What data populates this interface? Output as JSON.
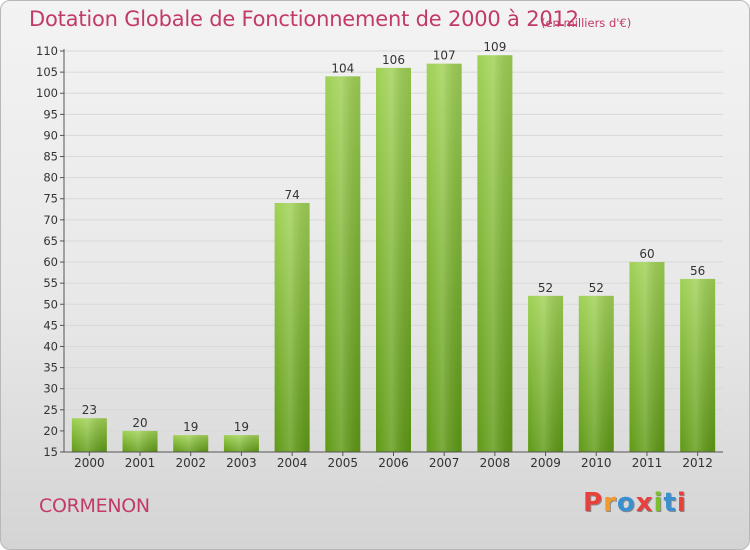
{
  "header": {
    "title": "Dotation Globale de Fonctionnement de 2000 à 2012",
    "subtitle": "(en milliers d'€)"
  },
  "footer": {
    "commune": "CORMENON",
    "logo_text": "Proxiti",
    "logo_colors": [
      "#e8413c",
      "#f29a2e",
      "#3a8fd1",
      "#e8413c",
      "#7bbf2a",
      "#3a8fd1",
      "#e8413c"
    ]
  },
  "colors": {
    "title": "#c23a6a",
    "bar_light": "#9fd154",
    "bar_dark": "#5f9a15",
    "grid": "#d8d8d8",
    "axis_text": "#333333"
  },
  "chart_data": {
    "type": "bar",
    "title": "Dotation Globale de Fonctionnement de 2000 à 2012",
    "subtitle": "(en milliers d'€)",
    "categories": [
      "2000",
      "2001",
      "2002",
      "2003",
      "2004",
      "2005",
      "2006",
      "2007",
      "2008",
      "2009",
      "2010",
      "2011",
      "2012"
    ],
    "values": [
      23,
      20,
      19,
      19,
      74,
      104,
      106,
      107,
      109,
      52,
      52,
      60,
      56
    ],
    "ylim": [
      15,
      110
    ],
    "yticks": [
      15,
      20,
      25,
      30,
      35,
      40,
      45,
      50,
      55,
      60,
      65,
      70,
      75,
      80,
      85,
      90,
      95,
      100,
      105,
      110
    ],
    "grid": true,
    "xlabel": "",
    "ylabel": ""
  }
}
